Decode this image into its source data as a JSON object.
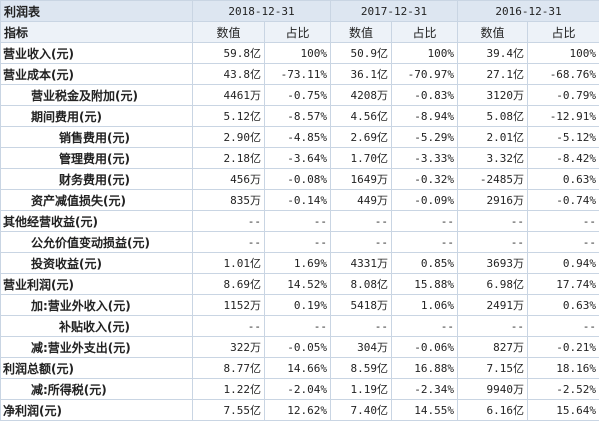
{
  "header": {
    "title": "利润表",
    "dates": [
      "2018-12-31",
      "2017-12-31",
      "2016-12-31"
    ],
    "indicator_label": "指标",
    "value_label": "数值",
    "ratio_label": "占比"
  },
  "rows": [
    {
      "name": "营业收入(元)",
      "indent": 0,
      "v1": "59.8亿",
      "r1": "100%",
      "v2": "50.9亿",
      "r2": "100%",
      "v3": "39.4亿",
      "r3": "100%"
    },
    {
      "name": "营业成本(元)",
      "indent": 0,
      "v1": "43.8亿",
      "r1": "-73.11%",
      "v2": "36.1亿",
      "r2": "-70.97%",
      "v3": "27.1亿",
      "r3": "-68.76%"
    },
    {
      "name": "营业税金及附加(元)",
      "indent": 1,
      "v1": "4461万",
      "r1": "-0.75%",
      "v2": "4208万",
      "r2": "-0.83%",
      "v3": "3120万",
      "r3": "-0.79%"
    },
    {
      "name": "期间费用(元)",
      "indent": 1,
      "v1": "5.12亿",
      "r1": "-8.57%",
      "v2": "4.56亿",
      "r2": "-8.94%",
      "v3": "5.08亿",
      "r3": "-12.91%"
    },
    {
      "name": "销售费用(元)",
      "indent": 2,
      "v1": "2.90亿",
      "r1": "-4.85%",
      "v2": "2.69亿",
      "r2": "-5.29%",
      "v3": "2.01亿",
      "r3": "-5.12%"
    },
    {
      "name": "管理费用(元)",
      "indent": 2,
      "v1": "2.18亿",
      "r1": "-3.64%",
      "v2": "1.70亿",
      "r2": "-3.33%",
      "v3": "3.32亿",
      "r3": "-8.42%"
    },
    {
      "name": "财务费用(元)",
      "indent": 2,
      "v1": "456万",
      "r1": "-0.08%",
      "v2": "1649万",
      "r2": "-0.32%",
      "v3": "-2485万",
      "r3": "0.63%"
    },
    {
      "name": "资产减值损失(元)",
      "indent": 1,
      "v1": "835万",
      "r1": "-0.14%",
      "v2": "449万",
      "r2": "-0.09%",
      "v3": "2916万",
      "r3": "-0.74%"
    },
    {
      "name": "其他经营收益(元)",
      "indent": 0,
      "v1": "--",
      "r1": "--",
      "v2": "--",
      "r2": "--",
      "v3": "--",
      "r3": "--"
    },
    {
      "name": "公允价值变动损益(元)",
      "indent": 1,
      "v1": "--",
      "r1": "--",
      "v2": "--",
      "r2": "--",
      "v3": "--",
      "r3": "--"
    },
    {
      "name": "投资收益(元)",
      "indent": 1,
      "v1": "1.01亿",
      "r1": "1.69%",
      "v2": "4331万",
      "r2": "0.85%",
      "v3": "3693万",
      "r3": "0.94%"
    },
    {
      "name": "营业利润(元)",
      "indent": 0,
      "v1": "8.69亿",
      "r1": "14.52%",
      "v2": "8.08亿",
      "r2": "15.88%",
      "v3": "6.98亿",
      "r3": "17.74%"
    },
    {
      "name": "加:营业外收入(元)",
      "indent": 1,
      "v1": "1152万",
      "r1": "0.19%",
      "v2": "5418万",
      "r2": "1.06%",
      "v3": "2491万",
      "r3": "0.63%"
    },
    {
      "name": "补贴收入(元)",
      "indent": 2,
      "v1": "--",
      "r1": "--",
      "v2": "--",
      "r2": "--",
      "v3": "--",
      "r3": "--"
    },
    {
      "name": "减:营业外支出(元)",
      "indent": 1,
      "v1": "322万",
      "r1": "-0.05%",
      "v2": "304万",
      "r2": "-0.06%",
      "v3": "827万",
      "r3": "-0.21%"
    },
    {
      "name": "利润总额(元)",
      "indent": 0,
      "v1": "8.77亿",
      "r1": "14.66%",
      "v2": "8.59亿",
      "r2": "16.88%",
      "v3": "7.15亿",
      "r3": "18.16%"
    },
    {
      "name": "减:所得税(元)",
      "indent": 1,
      "v1": "1.22亿",
      "r1": "-2.04%",
      "v2": "1.19亿",
      "r2": "-2.34%",
      "v3": "9940万",
      "r3": "-2.52%"
    },
    {
      "name": "净利润(元)",
      "indent": 0,
      "v1": "7.55亿",
      "r1": "12.62%",
      "v2": "7.40亿",
      "r2": "14.55%",
      "v3": "6.16亿",
      "r3": "15.64%"
    }
  ]
}
